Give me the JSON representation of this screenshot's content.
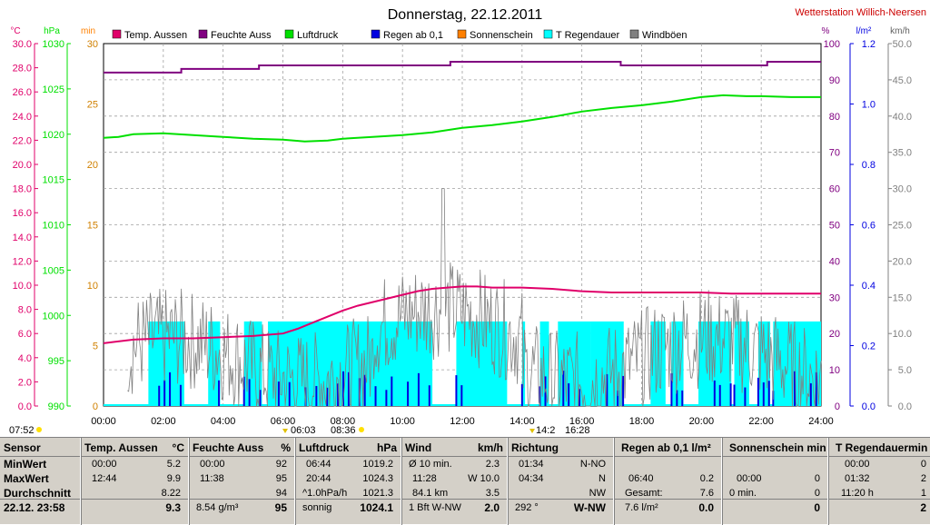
{
  "title": "Donnerstag, 22.12.2011",
  "station": "Wetterstation Willich-Neersen",
  "colors": {
    "temp": "#e0006a",
    "humid": "#800080",
    "pressure": "#00e000",
    "rain": "#0000e0",
    "sun": "#ff8000",
    "raindur": "#00ffff",
    "wind": "#808080",
    "station": "#cc0000"
  },
  "chart_data": {
    "type": "line",
    "legend": [
      "Temp. Aussen",
      "Feuchte Auss",
      "Luftdruck",
      "Regen ab 0,1",
      "Sonnenschein",
      "T Regendauer",
      "Windböen"
    ],
    "axis_units": {
      "temp": "°C",
      "pressure": "hPa",
      "minutes": "min",
      "humid": "%",
      "rain": "l/m²",
      "wind": "km/h"
    },
    "axes": {
      "temp": {
        "range": [
          0,
          30
        ],
        "ticks": [
          "0.0",
          "2.0",
          "4.0",
          "6.0",
          "8.0",
          "10.0",
          "12.0",
          "14.0",
          "16.0",
          "18.0",
          "20.0",
          "22.0",
          "24.0",
          "26.0",
          "28.0",
          "30.0"
        ]
      },
      "pressure": {
        "range": [
          990,
          1030
        ],
        "ticks": [
          "990",
          "995",
          "1000",
          "1005",
          "1010",
          "1015",
          "1020",
          "1025",
          "1030"
        ]
      },
      "minutes": {
        "range": [
          0,
          30
        ],
        "ticks": [
          "0",
          "5",
          "10",
          "15",
          "20",
          "25",
          "30"
        ]
      },
      "humid": {
        "range": [
          0,
          100
        ],
        "ticks": [
          "0",
          "10",
          "20",
          "30",
          "40",
          "50",
          "60",
          "70",
          "80",
          "90",
          "100"
        ]
      },
      "rain": {
        "range": [
          0,
          1.2
        ],
        "ticks": [
          "0.0",
          "0.2",
          "0.4",
          "0.6",
          "0.8",
          "1.0",
          "1.2"
        ]
      },
      "wind": {
        "range": [
          0,
          50
        ],
        "ticks": [
          "0.0",
          "5.0",
          "10.0",
          "15.0",
          "20.0",
          "25.0",
          "30.0",
          "35.0",
          "40.0",
          "45.0",
          "50.0"
        ]
      }
    },
    "x_ticks": [
      "00:00",
      "02:00",
      "04:00",
      "06:00",
      "08:00",
      "10:00",
      "12:00",
      "14:00",
      "16:00",
      "18:00",
      "20:00",
      "22:00",
      "24:00"
    ],
    "x_range": [
      0,
      24
    ],
    "grid": true,
    "temperature": {
      "x": [
        0,
        1,
        2,
        3,
        4,
        5,
        6,
        6.5,
        7,
        7.5,
        8,
        8.5,
        9,
        9.5,
        10,
        10.5,
        11,
        11.5,
        12,
        12.5,
        13,
        14,
        15,
        16,
        17,
        18,
        19,
        20,
        21,
        22,
        23,
        24
      ],
      "y": [
        5.2,
        5.5,
        5.6,
        5.6,
        5.7,
        5.8,
        6.0,
        6.4,
        6.9,
        7.4,
        7.9,
        8.3,
        8.6,
        8.9,
        9.2,
        9.5,
        9.7,
        9.8,
        9.9,
        9.9,
        9.8,
        9.8,
        9.7,
        9.5,
        9.4,
        9.4,
        9.4,
        9.4,
        9.3,
        9.3,
        9.3,
        9.3
      ]
    },
    "humidity": {
      "x": [
        0,
        2.6,
        2.6,
        5.2,
        5.2,
        11.6,
        11.6,
        17.3,
        17.3,
        22.2,
        22.2,
        24
      ],
      "y": [
        92,
        92,
        93,
        93,
        94,
        94,
        95,
        95,
        94,
        94,
        95,
        95
      ]
    },
    "pressure": {
      "x": [
        0,
        0.5,
        1,
        2,
        3,
        4,
        5,
        6,
        6.73,
        7.5,
        8,
        9,
        10,
        11,
        12,
        13,
        14,
        15,
        16,
        17,
        18,
        19,
        20,
        20.73,
        21.5,
        22,
        23,
        24
      ],
      "y": [
        1019.6,
        1019.7,
        1020.0,
        1020.1,
        1019.9,
        1019.7,
        1019.5,
        1019.4,
        1019.2,
        1019.3,
        1019.5,
        1019.7,
        1019.9,
        1020.2,
        1020.7,
        1021.0,
        1021.4,
        1021.9,
        1022.5,
        1022.9,
        1023.2,
        1023.6,
        1024.1,
        1024.3,
        1024.2,
        1024.2,
        1024.1,
        1024.1
      ]
    },
    "wind_gusts_note": "Windböen km/h, stark schwankend 0–30 km/h",
    "rain_duration_blocks": [
      [
        1.5,
        2.7
      ],
      [
        3.5,
        3.9
      ],
      [
        4.7,
        5.3
      ],
      [
        5.5,
        11.0
      ],
      [
        11.8,
        13.5
      ],
      [
        14.0,
        14.1
      ],
      [
        14.6,
        14.9
      ],
      [
        15.2,
        16.3
      ],
      [
        16.3,
        17.4
      ],
      [
        18.3,
        18.8
      ],
      [
        19.0,
        19.4
      ],
      [
        19.9,
        21.0
      ],
      [
        21.1,
        21.6
      ],
      [
        21.9,
        22.3
      ],
      [
        22.4,
        24.0
      ]
    ]
  },
  "markers": {
    "sunrise_left": "07:52",
    "marker_a": "06:03",
    "marker_b": "08:36",
    "marker_c": "14:2",
    "marker_d": "16:28"
  },
  "panel": {
    "sensor": {
      "header": "Sensor",
      "rows": [
        "MinWert",
        "MaxWert",
        "Durchschnitt"
      ],
      "footer": "22.12. 23:58"
    },
    "temp": {
      "header": "Temp. Aussen",
      "unit": "°C",
      "rows": [
        [
          "00:00",
          "5.2"
        ],
        [
          "12:44",
          "9.9"
        ],
        [
          "",
          "8.22"
        ]
      ],
      "footer_val": "9.3"
    },
    "humid": {
      "header": "Feuchte Auss",
      "unit": "%",
      "rows": [
        [
          "00:00",
          "92"
        ],
        [
          "11:38",
          "95"
        ],
        [
          "",
          "94"
        ]
      ],
      "footer_left": "8.54 g/m³",
      "footer_val": "95"
    },
    "pressure": {
      "header": "Luftdruck",
      "unit": "hPa",
      "rows": [
        [
          "06:44",
          "1019.2"
        ],
        [
          "20:44",
          "1024.3"
        ],
        [
          "^1.0hPa/h",
          "1021.3"
        ]
      ],
      "footer_left": "sonnig",
      "footer_val": "1024.1"
    },
    "wind": {
      "header": "Wind",
      "unit": "km/h",
      "rows": [
        [
          "Ø 10 min.",
          "2.3"
        ],
        [
          "11:28",
          "W 10.0"
        ],
        [
          "84.1 km",
          "3.5"
        ]
      ],
      "footer_left": "1 Bft W-NW",
      "footer_val": "2.0"
    },
    "dir": {
      "header": "Richtung",
      "rows": [
        [
          "01:34",
          "N-NO"
        ],
        [
          "04:34",
          "N"
        ],
        [
          "",
          "NW"
        ]
      ],
      "footer_left": "292 °",
      "footer_val": "W-NW"
    },
    "rain": {
      "header": "Regen ab 0,1 l/m²",
      "rows": [
        [
          "",
          ""
        ],
        [
          "06:40",
          "0.2"
        ],
        [
          "Gesamt:",
          "7.6"
        ]
      ],
      "footer_left": "7.6 l/m²",
      "footer_val": "0.0"
    },
    "sun": {
      "header": "Sonnenschein min",
      "rows": [
        [
          "",
          ""
        ],
        [
          "00:00",
          "0"
        ],
        [
          "0 min.",
          "0"
        ]
      ],
      "footer_val": "0"
    },
    "raindur": {
      "header": "T Regendauermin",
      "rows": [
        [
          "00:00",
          "0"
        ],
        [
          "01:32",
          "2"
        ],
        [
          "11:20 h",
          "1"
        ]
      ],
      "footer_val": "2"
    }
  }
}
